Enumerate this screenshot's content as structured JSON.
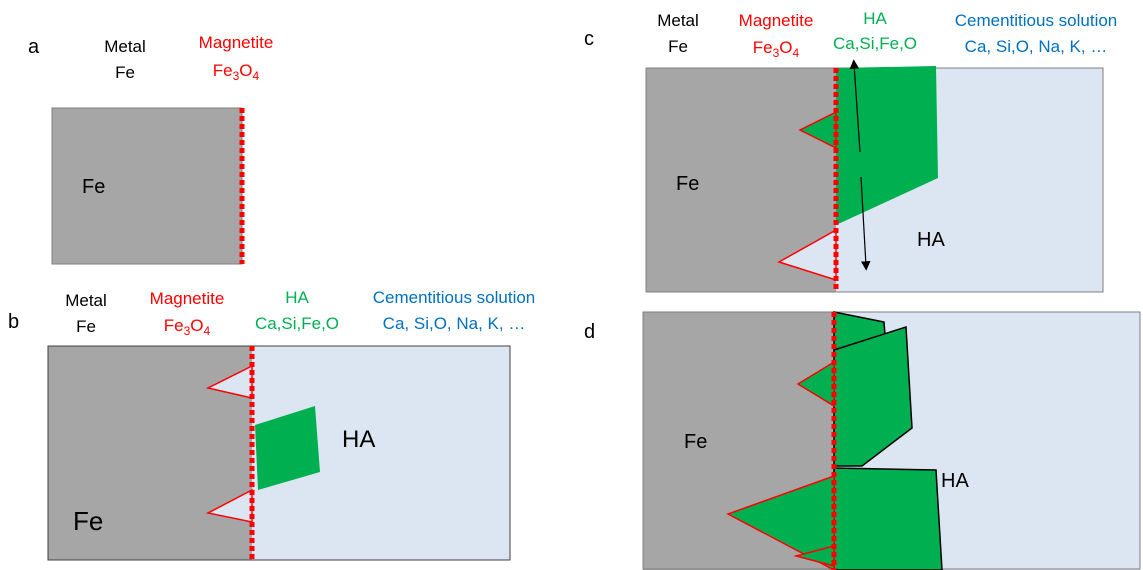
{
  "colors": {
    "metal": "#a6a6a6",
    "solution": "#dce6f2",
    "magnetite": "#ff0000",
    "ha": "#00b050",
    "cement_text": "#0070c0",
    "black": "#000000"
  },
  "panels": {
    "a": {
      "letter": "a",
      "metal_label": [
        "Metal",
        "Fe"
      ],
      "magnetite_label": "Magnetite",
      "magnetite_formula": {
        "base": "Fe",
        "sub1": "3",
        "mid": "O",
        "sub2": "4"
      },
      "fe_label": "Fe"
    },
    "b": {
      "letter": "b",
      "metal_label": [
        "Metal",
        "Fe"
      ],
      "magnetite_label": "Magnetite",
      "magnetite_formula": {
        "base": "Fe",
        "sub1": "3",
        "mid": "O",
        "sub2": "4"
      },
      "ha_header": [
        "HA",
        "Ca,Si,Fe,O"
      ],
      "cement_header": [
        "Cementitious solution",
        "Ca, Si,O, Na, K, …"
      ],
      "fe_label": "Fe",
      "ha_label": "HA"
    },
    "c": {
      "letter": "c",
      "metal_label": [
        "Metal",
        "Fe"
      ],
      "magnetite_label": "Magnetite",
      "magnetite_formula": {
        "base": "Fe",
        "sub1": "3",
        "mid": "O",
        "sub2": "4"
      },
      "ha_header": [
        "HA",
        "Ca,Si,Fe,O"
      ],
      "cement_header": [
        "Cementitious solution",
        "Ca, Si,O, Na, K, …"
      ],
      "fe_label": "Fe",
      "ha_label": "HA"
    },
    "d": {
      "letter": "d",
      "fe_label": "Fe",
      "ha_label": "HA"
    }
  }
}
